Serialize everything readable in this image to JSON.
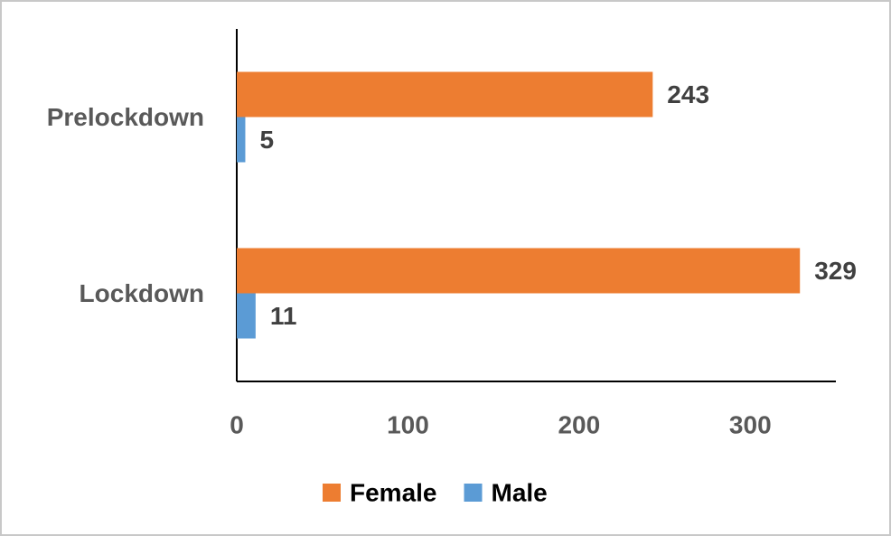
{
  "chart_data": {
    "type": "bar",
    "orientation": "horizontal",
    "categories": [
      "Prelockdown",
      "Lockdown"
    ],
    "series": [
      {
        "name": "Female",
        "color": "#ed7d31",
        "values": [
          243,
          329
        ]
      },
      {
        "name": "Male",
        "color": "#5b9bd5",
        "values": [
          5,
          11
        ]
      }
    ],
    "xlim": [
      0,
      350
    ],
    "xticks": [
      0,
      100,
      200,
      300
    ],
    "grid": false,
    "legend": "bottom"
  }
}
